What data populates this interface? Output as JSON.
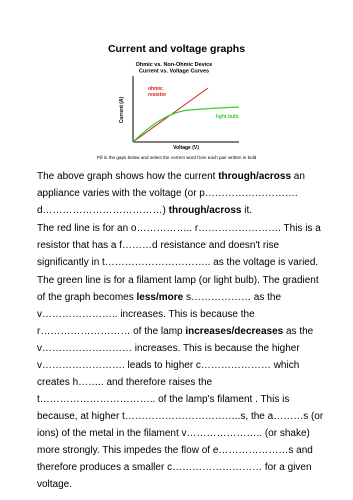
{
  "header": {
    "title": "Current and voltage graphs"
  },
  "figure": {
    "title_lines": [
      "Ohmic vs. Non-Ohmic Device",
      "Current vs. Voltage Curves"
    ],
    "y_label": "Current (A)",
    "x_label": "Voltage (V)",
    "red_label_lines": [
      "ohmic",
      "resistor"
    ],
    "green_label": "light bulb"
  },
  "instruction": "Fill in the gaps below and select the correct word from each pair written in bold",
  "paragraphs": [
    [
      {
        "text": "The above graph shows how the current "
      },
      {
        "text": "through/across",
        "bold": true
      },
      {
        "text": " an appliance varies with the voltage (or p………………………. d………………………………) "
      },
      {
        "text": "through/across",
        "bold": true
      },
      {
        "text": " it."
      }
    ],
    [
      {
        "text": "The red line is for an o…………….. r……………………. This is a resistor that has a f………d resistance and doesn't rise significantly in t………………………….. as the voltage is varied."
      }
    ],
    [
      {
        "text": "The green line is for a filament lamp (or light bulb).  The gradient of the graph becomes "
      },
      {
        "text": "less/more",
        "bold": true
      },
      {
        "text": " s………………  as the v………………….. increases. This is because the r……………………… of the lamp "
      },
      {
        "text": "increases/decreases",
        "bold": true
      },
      {
        "text": " as the v………………………  increases.  This is because the higher v…………………….  leads to higher c…………………  which creates h……..  and therefore raises the t…………………………….. of the lamp's filament .  This is because, at higher t……………………………..s, the a………s (or ions) of the metal in the filament v………………….. (or shake) more strongly.  This impedes the flow of e…………………s and therefore produces a smaller c……………………… for a given voltage."
      }
    ]
  ]
}
